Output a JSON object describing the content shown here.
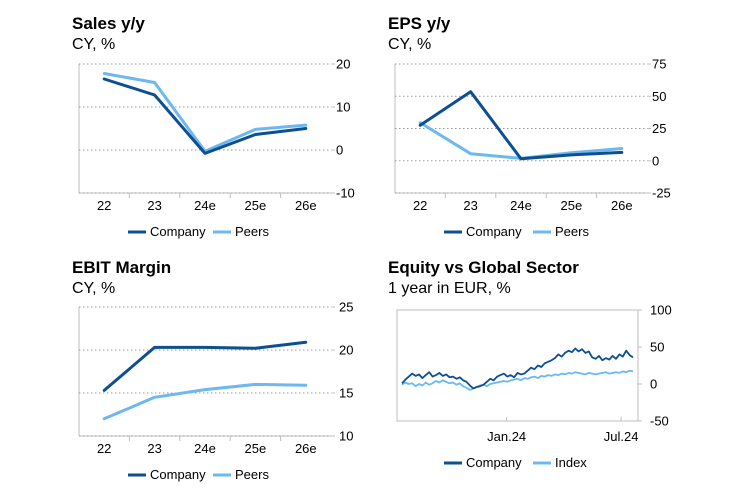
{
  "colors": {
    "company": "#0d4f91",
    "peers": "#6cb8f0",
    "grid": "#9a9a9a",
    "border": "#bfbfbf"
  },
  "panels": [
    {
      "title": "Sales y/y",
      "subtitle": "CY, %"
    },
    {
      "title": "EPS y/y",
      "subtitle": "CY, %"
    },
    {
      "title": "EBIT Margin",
      "subtitle": "CY, %"
    },
    {
      "title": "Equity vs Global Sector",
      "subtitle": "1 year in EUR, %"
    }
  ],
  "chart_data": [
    {
      "type": "line",
      "title": "Sales y/y",
      "subtitle": "CY, %",
      "categories": [
        "22",
        "23",
        "24e",
        "25e",
        "26e"
      ],
      "ylim": [
        -10,
        20
      ],
      "yticks": [
        -10,
        0,
        10,
        20
      ],
      "ytick_labels": [
        "-10",
        "0",
        "10",
        "20"
      ],
      "grid": true,
      "legend": "bottom",
      "series": [
        {
          "name": "Company",
          "values": [
            16.5,
            12.8,
            -0.8,
            3.6,
            5.0
          ]
        },
        {
          "name": "Peers",
          "values": [
            17.8,
            15.7,
            -0.3,
            4.8,
            5.8
          ]
        }
      ]
    },
    {
      "type": "line",
      "title": "EPS y/y",
      "subtitle": "CY, %",
      "categories": [
        "22",
        "23",
        "24e",
        "25e",
        "26e"
      ],
      "ylim": [
        -25,
        75
      ],
      "yticks": [
        -25,
        0,
        25,
        50,
        75
      ],
      "ytick_labels": [
        "-25",
        "0",
        "25",
        "50",
        "75"
      ],
      "grid": true,
      "legend": "bottom",
      "series": [
        {
          "name": "Company",
          "values": [
            27.5,
            53.5,
            1.5,
            4.5,
            6.5
          ]
        },
        {
          "name": "Peers",
          "values": [
            29.5,
            5.5,
            1.8,
            6.2,
            9.5
          ]
        }
      ]
    },
    {
      "type": "line",
      "title": "EBIT Margin",
      "subtitle": "CY, %",
      "categories": [
        "22",
        "23",
        "24e",
        "25e",
        "26e"
      ],
      "ylim": [
        10,
        25
      ],
      "yticks": [
        10,
        15,
        20,
        25
      ],
      "ytick_labels": [
        "10",
        "15",
        "20",
        "25"
      ],
      "grid": true,
      "legend": "bottom",
      "series": [
        {
          "name": "Company",
          "values": [
            15.3,
            20.3,
            20.3,
            20.2,
            20.9
          ]
        },
        {
          "name": "Peers",
          "values": [
            12.0,
            14.5,
            15.4,
            16.0,
            15.9
          ]
        }
      ]
    },
    {
      "type": "line",
      "title": "Equity vs Global Sector",
      "subtitle": "1 year in EUR, %",
      "x_tick_labels": [
        "Jan.24",
        "Jul.24"
      ],
      "ylim": [
        -50,
        100
      ],
      "yticks": [
        -50,
        0,
        50,
        100
      ],
      "ytick_labels": [
        "-50",
        "0",
        "50",
        "100"
      ],
      "grid": false,
      "legend": "bottom",
      "series": [
        {
          "name": "Company",
          "values": [
            1,
            6,
            10,
            14,
            11,
            13,
            8,
            12,
            16,
            10,
            12,
            15,
            11,
            13,
            9,
            10,
            7,
            9,
            5,
            3,
            -2,
            -6,
            -4,
            -3,
            -1,
            3,
            7,
            5,
            10,
            12,
            14,
            10,
            12,
            9,
            15,
            13,
            14,
            18,
            22,
            20,
            25,
            23,
            28,
            30,
            32,
            35,
            40,
            37,
            42,
            45,
            43,
            48,
            44,
            47,
            42,
            44,
            36,
            34,
            38,
            32,
            35,
            33,
            38,
            34,
            40,
            37,
            45,
            39,
            36
          ]
        },
        {
          "name": "Index",
          "values": [
            -1,
            2,
            0,
            1,
            -3,
            0,
            -2,
            2,
            -1,
            1,
            4,
            2,
            5,
            3,
            1,
            2,
            -1,
            1,
            -3,
            -5,
            -8,
            -6,
            -4,
            -2,
            -1,
            -3,
            0,
            1,
            2,
            3,
            4,
            3,
            5,
            6,
            7,
            5,
            8,
            7,
            9,
            10,
            8,
            11,
            10,
            12,
            11,
            13,
            12,
            14,
            13,
            15,
            14,
            16,
            15,
            14,
            13,
            15,
            14,
            13,
            14,
            15,
            16,
            14,
            15,
            16,
            15,
            17,
            16,
            18,
            17
          ]
        }
      ]
    }
  ]
}
